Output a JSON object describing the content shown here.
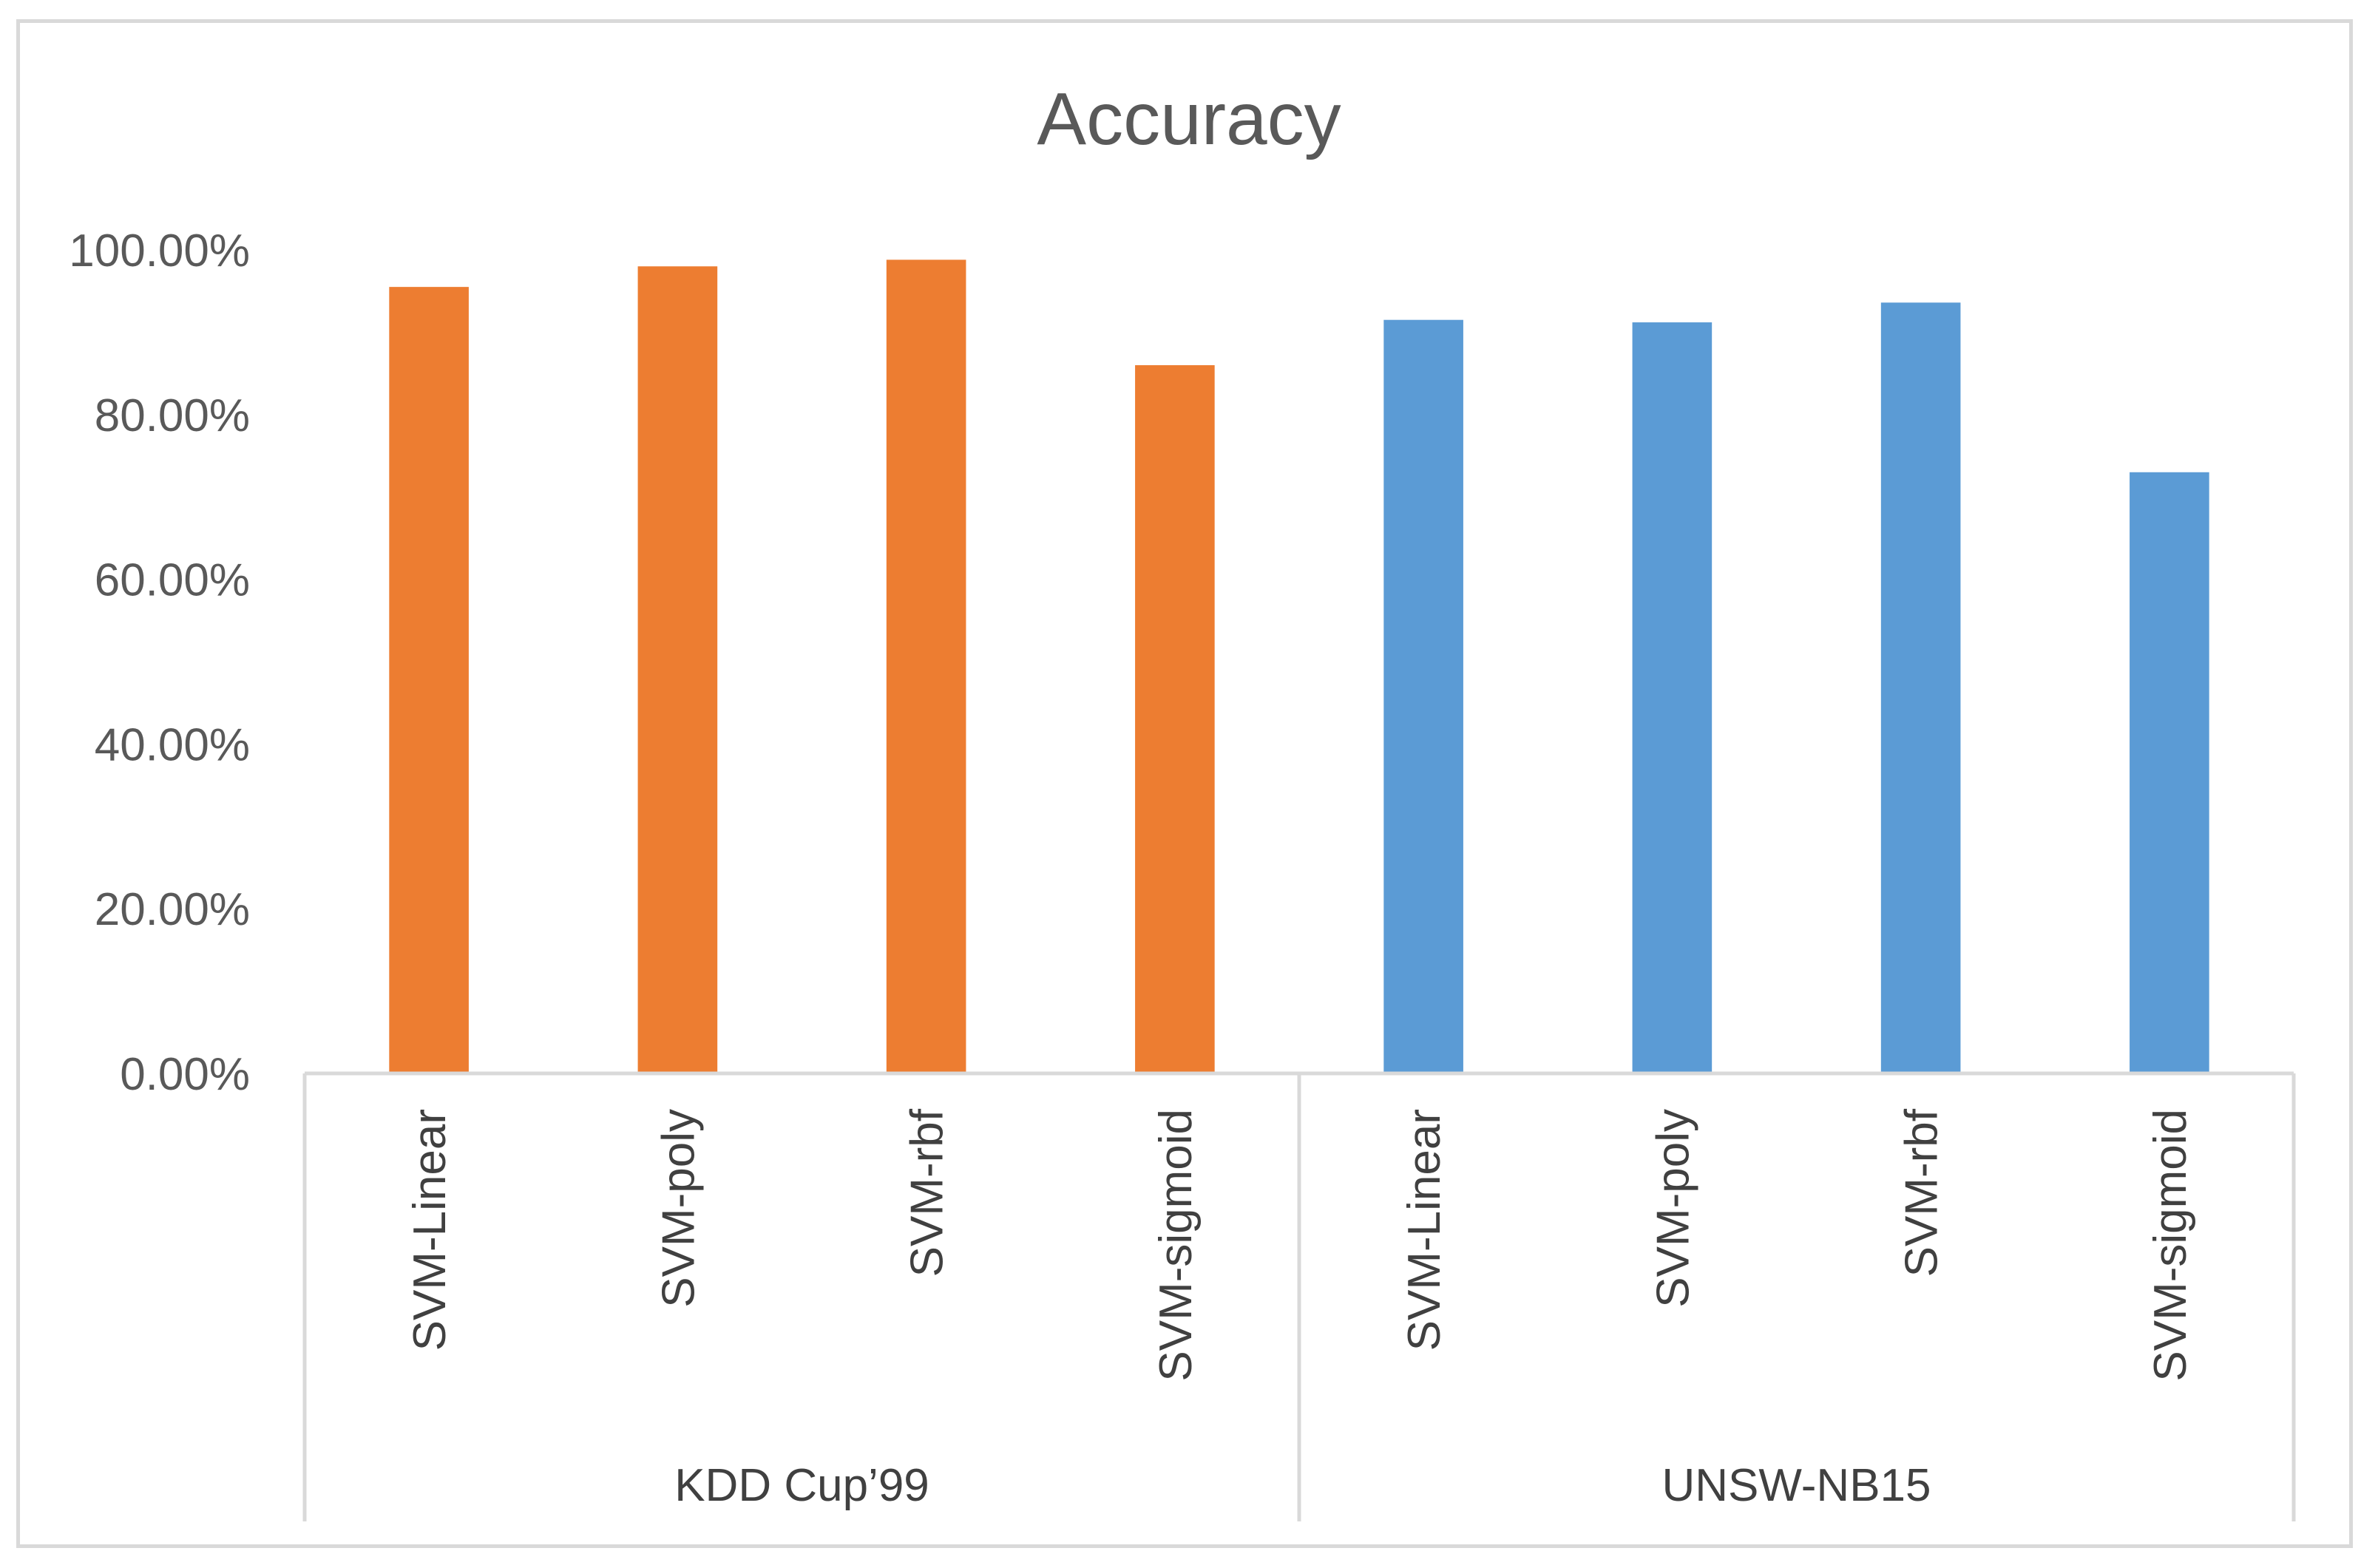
{
  "chart_data": {
    "type": "bar",
    "title": "Accuracy",
    "xlabel": "",
    "ylabel": "",
    "ylim": [
      0,
      1
    ],
    "y_ticks": [
      "0.00%",
      "20.00%",
      "40.00%",
      "60.00%",
      "80.00%",
      "100.00%"
    ],
    "grid": false,
    "legend": "none",
    "groups": [
      {
        "name": "KDD Cup’99",
        "color": "#ED7D31",
        "categories": [
          "SVM-Linear",
          "SVM-poly",
          "SVM-rbf",
          "SVM-sigmoid"
        ],
        "values": [
          0.955,
          0.98,
          0.988,
          0.86
        ]
      },
      {
        "name": "UNSW-NB15",
        "color": "#5B9BD5",
        "categories": [
          "SVM-Linear",
          "SVM-poly",
          "SVM-rbf",
          "SVM-sigmoid"
        ],
        "values": [
          0.915,
          0.912,
          0.936,
          0.73
        ]
      }
    ]
  }
}
